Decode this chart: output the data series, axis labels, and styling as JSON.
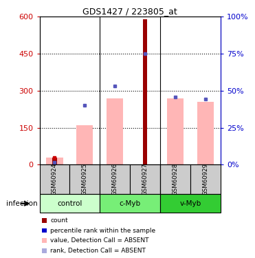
{
  "title": "GDS1427 / 223805_at",
  "samples": [
    "GSM60924",
    "GSM60925",
    "GSM60926",
    "GSM60927",
    "GSM60928",
    "GSM60929"
  ],
  "pink_bars": [
    30,
    160,
    270,
    0,
    270,
    255
  ],
  "red_bars": [
    30,
    0,
    0,
    590,
    0,
    0
  ],
  "blue_squares": [
    10,
    240,
    320,
    450,
    275,
    265
  ],
  "red_squares": [
    30,
    0,
    0,
    0,
    0,
    0
  ],
  "ylim_left": [
    0,
    600
  ],
  "ylim_right": [
    0,
    100
  ],
  "yticks_left": [
    0,
    150,
    300,
    450,
    600
  ],
  "yticks_right": [
    0,
    25,
    50,
    75,
    100
  ],
  "left_axis_color": "#cc0000",
  "right_axis_color": "#0000cc",
  "bar_pink_color": "#ffb6b6",
  "bar_red_color": "#990000",
  "square_blue_color": "#5555bb",
  "square_red_color": "#cc0000",
  "sample_bg_color": "#cccccc",
  "group_defs": [
    {
      "name": "control",
      "start": 0,
      "end": 2,
      "color": "#ccffcc"
    },
    {
      "name": "c-Myb",
      "start": 2,
      "end": 4,
      "color": "#77ee77"
    },
    {
      "name": "v-Myb",
      "start": 4,
      "end": 6,
      "color": "#33cc33"
    }
  ],
  "legend_items": [
    {
      "label": "count",
      "color": "#990000"
    },
    {
      "label": "percentile rank within the sample",
      "color": "#0000cc"
    },
    {
      "label": "value, Detection Call = ABSENT",
      "color": "#ffb6b6"
    },
    {
      "label": "rank, Detection Call = ABSENT",
      "color": "#aaaadd"
    }
  ],
  "infection_label": "infection"
}
